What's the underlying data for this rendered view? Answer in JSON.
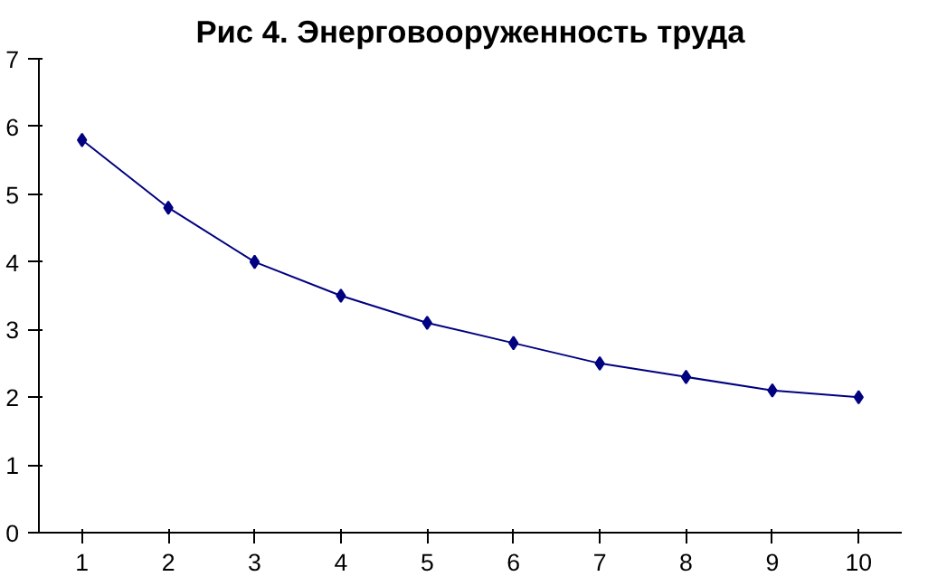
{
  "chart_data": {
    "type": "line",
    "title": "Рис 4. Энерговооруженность труда",
    "categories": [
      "1",
      "2",
      "3",
      "4",
      "5",
      "6",
      "7",
      "8",
      "9",
      "10"
    ],
    "series": [
      {
        "color": "#000080",
        "values": [
          5.8,
          4.8,
          4.0,
          3.5,
          3.1,
          2.8,
          2.5,
          2.3,
          2.1,
          2.0
        ]
      }
    ],
    "ylim": [
      0,
      7
    ],
    "yticks": [
      0,
      1,
      2,
      3,
      4,
      5,
      6,
      7
    ],
    "grid": false,
    "marker": "diamond",
    "line_style": "solid"
  }
}
